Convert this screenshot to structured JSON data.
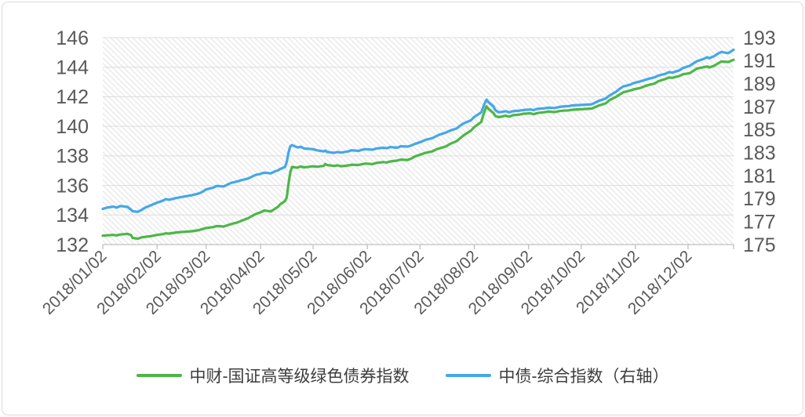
{
  "chart_data": {
    "type": "line",
    "title": "",
    "legend_position": "bottom",
    "plot_background": "diagonal-hatch",
    "grid": "horizontal",
    "x_tick_labels": [
      "2018/01/02",
      "2018/02/02",
      "2018/03/02",
      "2018/04/02",
      "2018/05/02",
      "2018/06/02",
      "2018/07/02",
      "2018/08/02",
      "2018/09/02",
      "2018/10/02",
      "2018/11/02",
      "2018/12/02"
    ],
    "left_axis": {
      "min": 132,
      "max": 146,
      "step": 2,
      "tick_labels": [
        "146",
        "144",
        "142",
        "140",
        "138",
        "136",
        "134",
        "132"
      ]
    },
    "right_axis": {
      "min": 175,
      "max": 193,
      "step": 2,
      "tick_labels": [
        "193",
        "191",
        "189",
        "187",
        "185",
        "183",
        "181",
        "179",
        "177",
        "175"
      ]
    },
    "x_dates": [
      "01-02",
      "01-04",
      "01-08",
      "01-10",
      "01-12",
      "01-16",
      "01-18",
      "01-19",
      "01-22",
      "01-24",
      "01-26",
      "01-30",
      "02-02",
      "02-05",
      "02-07",
      "02-09",
      "02-13",
      "02-22",
      "02-26",
      "02-28",
      "03-02",
      "03-06",
      "03-08",
      "03-12",
      "03-14",
      "03-16",
      "03-20",
      "03-22",
      "03-26",
      "03-28",
      "03-30",
      "04-02",
      "04-04",
      "04-08",
      "04-10",
      "04-12",
      "04-13",
      "04-16",
      "04-17",
      "04-18",
      "04-19",
      "04-20",
      "04-23",
      "04-25",
      "04-27",
      "05-02",
      "05-04",
      "05-08",
      "05-09",
      "05-10",
      "05-14",
      "05-16",
      "05-18",
      "05-22",
      "05-24",
      "05-28",
      "05-30",
      "06-01",
      "06-05",
      "06-07",
      "06-11",
      "06-13",
      "06-15",
      "06-19",
      "06-21",
      "06-25",
      "06-27",
      "06-29",
      "07-03",
      "07-05",
      "07-09",
      "07-11",
      "07-13",
      "07-17",
      "07-19",
      "07-23",
      "07-25",
      "07-27",
      "07-31",
      "08-02",
      "08-06",
      "08-07",
      "08-08",
      "08-09",
      "08-10",
      "08-13",
      "08-14",
      "08-16",
      "08-20",
      "08-22",
      "08-24",
      "08-28",
      "08-30",
      "09-03",
      "09-05",
      "09-07",
      "09-11",
      "09-13",
      "09-17",
      "09-19",
      "09-21",
      "09-25",
      "09-27",
      "10-08",
      "10-10",
      "10-12",
      "10-16",
      "10-18",
      "10-22",
      "10-24",
      "10-26",
      "10-30",
      "11-01",
      "11-05",
      "11-07",
      "11-09",
      "11-13",
      "11-15",
      "11-19",
      "11-21",
      "11-23",
      "11-27",
      "11-29",
      "12-03",
      "12-05",
      "12-07",
      "12-11",
      "12-13",
      "12-14",
      "12-17",
      "12-19",
      "12-21",
      "12-25",
      "12-27",
      "12-28"
    ],
    "series": [
      {
        "name": "中财-国证高等级绿色债券指数",
        "axis": "left",
        "color": "#4db648",
        "values": [
          132.6,
          132.62,
          132.65,
          132.62,
          132.68,
          132.72,
          132.66,
          132.45,
          132.4,
          132.48,
          132.52,
          132.58,
          132.65,
          132.7,
          132.76,
          132.74,
          132.82,
          132.9,
          132.98,
          133.05,
          133.12,
          133.18,
          133.25,
          133.22,
          133.3,
          133.38,
          133.5,
          133.6,
          133.78,
          133.92,
          134.05,
          134.18,
          134.3,
          134.25,
          134.4,
          134.55,
          134.7,
          134.95,
          135.2,
          136.1,
          136.9,
          137.25,
          137.2,
          137.28,
          137.22,
          137.3,
          137.26,
          137.32,
          137.45,
          137.38,
          137.32,
          137.36,
          137.3,
          137.35,
          137.4,
          137.38,
          137.44,
          137.48,
          137.44,
          137.52,
          137.58,
          137.55,
          137.62,
          137.68,
          137.75,
          137.72,
          137.82,
          137.95,
          138.12,
          138.2,
          138.3,
          138.42,
          138.5,
          138.65,
          138.8,
          139.0,
          139.2,
          139.4,
          139.7,
          139.95,
          140.3,
          140.7,
          141.05,
          141.35,
          141.2,
          140.9,
          140.7,
          140.62,
          140.72,
          140.65,
          140.75,
          140.8,
          140.85,
          140.88,
          140.82,
          140.9,
          140.95,
          141.0,
          140.96,
          141.02,
          141.05,
          141.08,
          141.12,
          141.2,
          141.3,
          141.4,
          141.55,
          141.75,
          142.0,
          142.15,
          142.3,
          142.42,
          142.5,
          142.6,
          142.7,
          142.78,
          142.9,
          143.05,
          143.2,
          143.3,
          143.28,
          143.4,
          143.52,
          143.6,
          143.75,
          143.9,
          144.0,
          144.05,
          143.98,
          144.1,
          144.25,
          144.38,
          144.35,
          144.45,
          144.5
        ]
      },
      {
        "name": "中债-综合指数（右轴）",
        "axis": "right",
        "color": "#45a7e8",
        "values": [
          178.1,
          178.2,
          178.3,
          178.22,
          178.35,
          178.28,
          178.05,
          177.9,
          177.85,
          178.0,
          178.2,
          178.45,
          178.65,
          178.8,
          178.95,
          178.9,
          179.05,
          179.3,
          179.45,
          179.6,
          179.8,
          179.95,
          180.1,
          180.05,
          180.2,
          180.35,
          180.5,
          180.6,
          180.75,
          180.9,
          181.05,
          181.15,
          181.25,
          181.2,
          181.35,
          181.45,
          181.55,
          181.75,
          182.2,
          183.0,
          183.55,
          183.65,
          183.45,
          183.5,
          183.35,
          183.3,
          183.2,
          183.1,
          183.18,
          183.05,
          182.98,
          183.05,
          183.0,
          183.1,
          183.2,
          183.15,
          183.25,
          183.3,
          183.25,
          183.35,
          183.42,
          183.38,
          183.48,
          183.42,
          183.55,
          183.52,
          183.62,
          183.75,
          183.95,
          184.1,
          184.25,
          184.4,
          184.55,
          184.75,
          184.9,
          185.1,
          185.35,
          185.55,
          185.8,
          186.1,
          186.5,
          186.9,
          187.3,
          187.6,
          187.4,
          187.0,
          186.7,
          186.5,
          186.6,
          186.5,
          186.6,
          186.65,
          186.7,
          186.75,
          186.7,
          186.8,
          186.85,
          186.9,
          186.88,
          186.95,
          187.0,
          187.05,
          187.1,
          187.2,
          187.35,
          187.5,
          187.7,
          187.95,
          188.3,
          188.55,
          188.75,
          188.9,
          189.05,
          189.2,
          189.3,
          189.4,
          189.55,
          189.7,
          189.85,
          190.0,
          189.95,
          190.15,
          190.35,
          190.55,
          190.75,
          190.95,
          191.15,
          191.3,
          191.2,
          191.4,
          191.6,
          191.75,
          191.65,
          191.85,
          191.95
        ]
      }
    ]
  },
  "colors": {
    "green_series": "#4db648",
    "blue_series": "#45a7e8",
    "axis_text": "#595959",
    "legend_text": "#3d3d3d",
    "gridline": "#dcdcdc",
    "hatch_line": "#e3e3e3",
    "axis_line": "#bfbfbf",
    "card_border": "#dadada"
  }
}
